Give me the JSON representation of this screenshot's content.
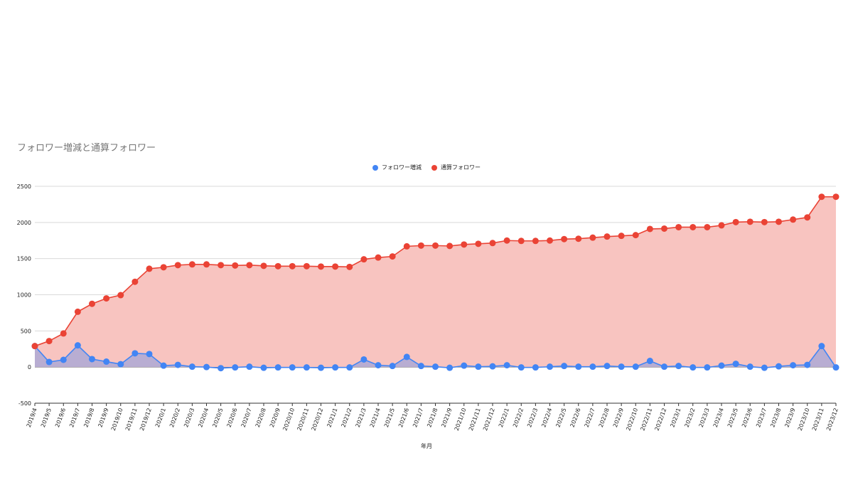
{
  "chart_data": {
    "type": "area",
    "title": "フォロワー増減と通算フォロワー",
    "xlabel": "年月",
    "ylabel": "",
    "ylim": [
      -500,
      2500
    ],
    "yticks": [
      -500,
      0,
      500,
      1000,
      1500,
      2000,
      2500
    ],
    "grid": true,
    "legend_position": "top",
    "categories": [
      "2019/4",
      "2019/5",
      "2019/6",
      "2019/7",
      "2019/8",
      "2019/9",
      "2019/10",
      "2019/11",
      "2019/12",
      "2020/1",
      "2020/2",
      "2020/3",
      "2020/4",
      "2020/5",
      "2020/6",
      "2020/7",
      "2020/8",
      "2020/9",
      "2020/10",
      "2020/11",
      "2020/12",
      "2021/1",
      "2021/2",
      "2021/3",
      "2021/4",
      "2021/5",
      "2021/6",
      "2021/7",
      "2021/8",
      "2021/9",
      "2021/10",
      "2021/11",
      "2021/12",
      "2022/1",
      "2022/2",
      "2022/3",
      "2022/4",
      "2022/5",
      "2022/6",
      "2022/7",
      "2022/8",
      "2022/9",
      "2022/10",
      "2022/11",
      "2022/12",
      "2023/1",
      "2023/2",
      "2023/3",
      "2023/4",
      "2023/5",
      "2023/6",
      "2023/7",
      "2023/8",
      "2023/9",
      "2023/10",
      "2023/11",
      "2023/12"
    ],
    "series": [
      {
        "name": "フォロワー増減",
        "color": "#4285f4",
        "values": [
          290,
          70,
          100,
          300,
          110,
          75,
          40,
          190,
          180,
          20,
          30,
          5,
          0,
          -15,
          -5,
          5,
          -10,
          -5,
          -5,
          -5,
          -10,
          -5,
          -5,
          105,
          25,
          15,
          140,
          15,
          5,
          -10,
          20,
          5,
          10,
          25,
          -5,
          -5,
          5,
          15,
          5,
          5,
          15,
          5,
          5,
          85,
          5,
          15,
          -5,
          -5,
          20,
          45,
          5,
          -10,
          10,
          25,
          30,
          290,
          -5
        ]
      },
      {
        "name": "通算フォロワー",
        "color": "#ea4335",
        "fill": "#f8c4c0",
        "values": [
          290,
          360,
          465,
          765,
          875,
          950,
          995,
          1180,
          1360,
          1380,
          1410,
          1420,
          1420,
          1410,
          1405,
          1410,
          1400,
          1395,
          1395,
          1395,
          1390,
          1390,
          1385,
          1490,
          1515,
          1530,
          1670,
          1680,
          1680,
          1675,
          1695,
          1705,
          1715,
          1750,
          1745,
          1745,
          1750,
          1770,
          1775,
          1790,
          1805,
          1815,
          1825,
          1910,
          1915,
          1935,
          1935,
          1935,
          1960,
          2005,
          2010,
          2005,
          2010,
          2040,
          2070,
          2355,
          2355
        ]
      }
    ]
  }
}
